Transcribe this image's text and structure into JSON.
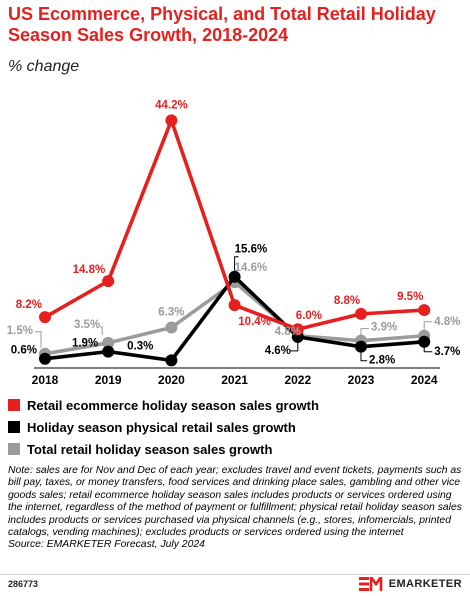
{
  "header": {
    "title": "US Ecommerce, Physical, and Total Retail Holiday Season Sales Growth, 2018-2024",
    "subtitle": "% change"
  },
  "chart_data": {
    "type": "line",
    "title": "US Ecommerce, Physical, and Total Retail Holiday Season Sales Growth, 2018-2024",
    "subtitle": "% change",
    "x": [
      "2018",
      "2019",
      "2020",
      "2021",
      "2022",
      "2023",
      "2024"
    ],
    "ylim": [
      0,
      45
    ],
    "grid": false,
    "legend_placement": "bottom",
    "series": [
      {
        "name": "Retail ecommerce holiday season sales growth",
        "color": "#e5201f",
        "values": [
          8.2,
          14.8,
          44.2,
          10.4,
          6.0,
          8.8,
          9.5
        ],
        "labels": [
          "8.2%",
          "14.8%",
          "44.2%",
          "10.4%",
          "6.0%",
          "8.8%",
          "9.5%"
        ]
      },
      {
        "name": "Holiday season physical retail sales growth",
        "color": "#000000",
        "values": [
          0.6,
          1.9,
          0.3,
          15.6,
          4.6,
          2.8,
          3.7
        ],
        "labels": [
          "0.6%",
          "1.9%",
          "0.3%",
          "15.6%",
          "4.6%",
          "2.8%",
          "3.7%"
        ]
      },
      {
        "name": "Total retail holiday season sales growth",
        "color": "#9b9b9b",
        "values": [
          1.5,
          3.5,
          6.3,
          14.6,
          4.8,
          3.9,
          4.8
        ],
        "labels": [
          "1.5%",
          "3.5%",
          "6.3%",
          "14.6%",
          "4.8%",
          "3.9%",
          "4.8%"
        ]
      }
    ]
  },
  "notes": {
    "note": "Note: sales are for Nov and Dec of each year; excludes travel and event tickets, payments such as bill pay, taxes, or money transfers, food services and drinking place sales, gambling and other vice goods sales; retail ecommerce holiday season sales includes products or services ordered using the internet, regardless of the method of payment or fulfillment; physical retail holiday season sales includes products or services purchased via physical channels (e.g., stores, infomercials, printed catalogs, vending machines); excludes products or services ordered using the internet",
    "source": "Source: EMARKETER Forecast, July 2024"
  },
  "footer": {
    "chart_id": "286773",
    "brand": "EMARKETER",
    "logo_icon": "emarketer-logo-icon"
  }
}
